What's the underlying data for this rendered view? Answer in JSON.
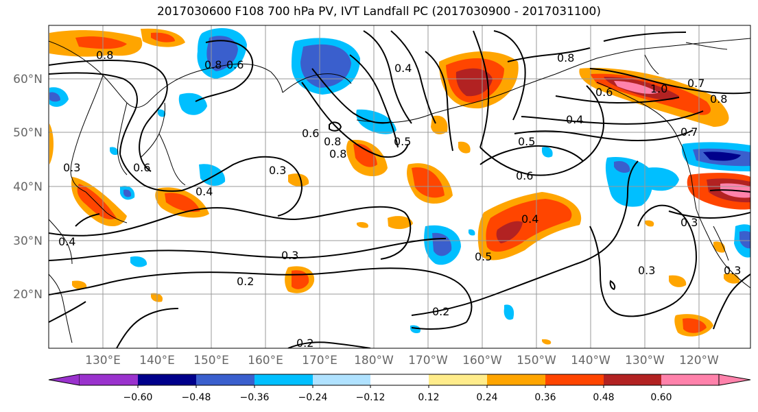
{
  "title": "2017030600 F108 700 hPa PV, IVT Landfall PC (2017030900 - 2017031100)",
  "map": {
    "lat_labels": [
      "60°N",
      "50°N",
      "40°N",
      "30°N",
      "20°N"
    ],
    "lon_labels": [
      "130°E",
      "140°E",
      "150°E",
      "160°E",
      "170°E",
      "180°W",
      "170°W",
      "160°W",
      "150°W",
      "140°W",
      "130°W",
      "120°W"
    ],
    "grid_color": "#999999",
    "coast_color": "#000000"
  },
  "colorbar": {
    "colors": [
      "#9a32cd",
      "#00008b",
      "#3a5fcd",
      "#00bfff",
      "#b0e2ff",
      "#ffffff",
      "#ffec8b",
      "#ffa500",
      "#ff4500",
      "#b22222",
      "#ff82ab"
    ],
    "tick_labels": [
      "−0.60",
      "−0.48",
      "−0.36",
      "−0.24",
      "−0.12",
      "0.12",
      "0.24",
      "0.36",
      "0.48",
      "0.60"
    ],
    "levels": [
      -0.6,
      -0.48,
      -0.36,
      -0.24,
      -0.12,
      0.12,
      0.24,
      0.36,
      0.48,
      0.6
    ]
  },
  "contour_labels": [
    "0.8",
    "0.8",
    "0.6",
    "0.8",
    "0.4",
    "0.6",
    "0.8",
    "0.5",
    "0.6",
    "0.8",
    "1.0",
    "0.7",
    "0.8",
    "0.6",
    "0.4",
    "0.5",
    "0.6",
    "0.7",
    "0.4",
    "0.3",
    "0.3",
    "0.3",
    "0.2",
    "0.2",
    "0.2",
    "0.3",
    "0.4",
    "0.3",
    "0.3",
    "0.4",
    "0.5"
  ]
}
